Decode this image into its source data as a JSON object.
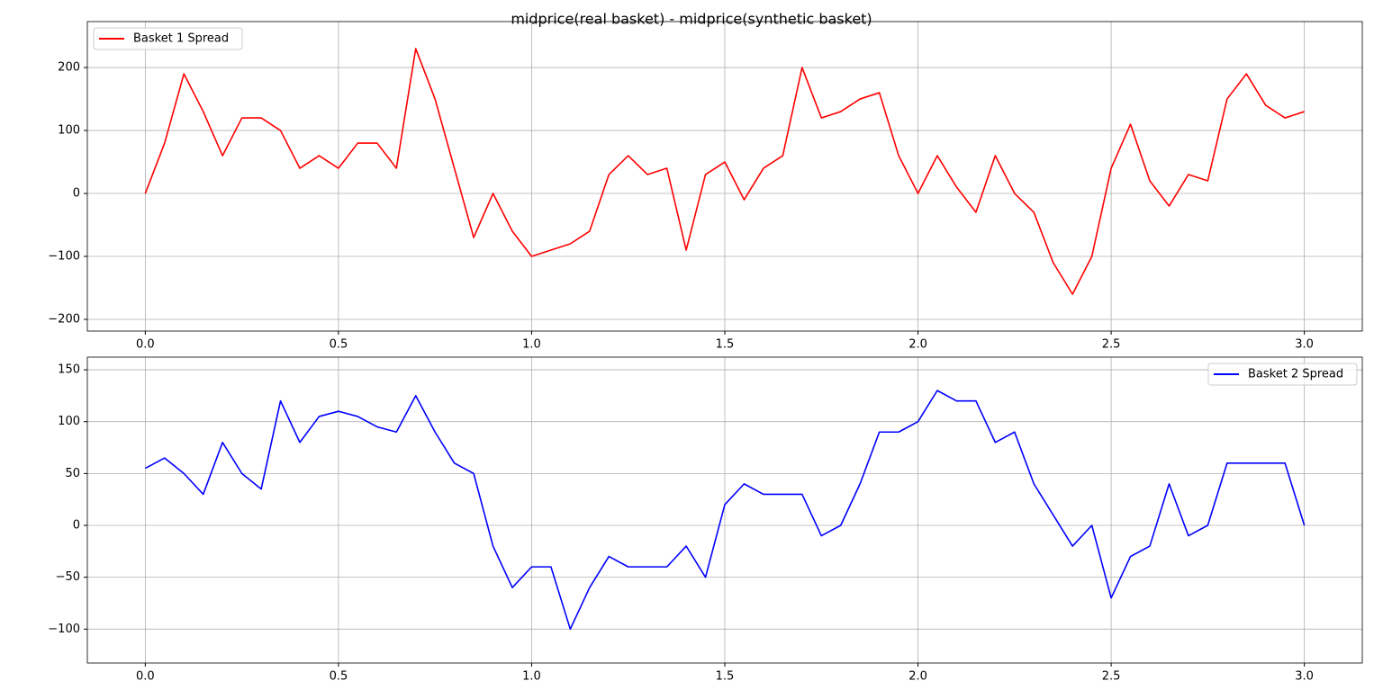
{
  "title": "midprice(real basket) - midprice(synthetic basket)",
  "chart_data": [
    {
      "type": "line",
      "x": [
        0,
        0.05,
        0.1,
        0.15,
        0.2,
        0.25,
        0.3,
        0.35,
        0.4,
        0.45,
        0.5,
        0.55,
        0.6,
        0.65,
        0.7,
        0.75,
        0.8,
        0.85,
        0.9,
        0.95,
        1,
        1.05,
        1.1,
        1.15,
        1.2,
        1.25,
        1.3,
        1.35,
        1.4,
        1.45,
        1.5,
        1.55,
        1.6,
        1.65,
        1.7,
        1.75,
        1.8,
        1.85,
        1.9,
        1.95,
        2,
        2.05,
        2.1,
        2.15,
        2.2,
        2.25,
        2.3,
        2.35,
        2.4,
        2.45,
        2.5,
        2.55,
        2.6,
        2.65,
        2.7,
        2.75,
        2.8,
        2.85,
        2.9,
        2.95,
        3
      ],
      "series": [
        {
          "name": "Basket 1 Spread",
          "color": "#ff0000",
          "values": [
            0,
            80,
            190,
            130,
            60,
            120,
            120,
            100,
            40,
            60,
            40,
            80,
            80,
            40,
            230,
            150,
            40,
            -70,
            0,
            -60,
            -100,
            -90,
            -80,
            -60,
            30,
            60,
            30,
            40,
            -90,
            30,
            50,
            -10,
            40,
            60,
            200,
            120,
            130,
            150,
            160,
            60,
            0,
            60,
            10,
            -30,
            60,
            0,
            -30,
            -110,
            -160,
            -100,
            40,
            110,
            20,
            -20,
            30,
            20,
            150,
            190,
            140,
            120,
            130
          ]
        }
      ],
      "xlim": [
        -0.15,
        3.15
      ],
      "xticks": [
        {
          "value": 0,
          "label": "0.0"
        },
        0.5,
        {
          "value": 1,
          "label": "1.0"
        },
        1.5,
        {
          "value": 2,
          "label": "2.0"
        },
        2.5,
        {
          "value": 3,
          "label": "3.0"
        }
      ],
      "ylim": [
        -218.6,
        273
      ],
      "yticks": [
        {
          "value": -200,
          "label": "−200"
        },
        {
          "value": -100,
          "label": "−100"
        },
        0,
        100,
        200
      ],
      "grid": true,
      "legend": "upper left"
    },
    {
      "type": "line",
      "x": [
        0,
        0.05,
        0.1,
        0.15,
        0.2,
        0.25,
        0.3,
        0.35,
        0.4,
        0.45,
        0.5,
        0.55,
        0.6,
        0.65,
        0.7,
        0.75,
        0.8,
        0.85,
        0.9,
        0.95,
        1,
        1.05,
        1.1,
        1.15,
        1.2,
        1.25,
        1.3,
        1.35,
        1.4,
        1.45,
        1.5,
        1.55,
        1.6,
        1.65,
        1.7,
        1.75,
        1.8,
        1.85,
        1.9,
        1.95,
        2,
        2.05,
        2.1,
        2.15,
        2.2,
        2.25,
        2.3,
        2.35,
        2.4,
        2.45,
        2.5,
        2.55,
        2.6,
        2.65,
        2.7,
        2.75,
        2.8,
        2.85,
        2.9,
        2.95,
        3
      ],
      "series": [
        {
          "name": "Basket 2 Spread",
          "color": "#0000ff",
          "values": [
            55,
            65,
            50,
            30,
            80,
            50,
            35,
            120,
            80,
            105,
            110,
            105,
            95,
            90,
            125,
            90,
            60,
            50,
            -20,
            -60,
            -40,
            -40,
            -100,
            -60,
            -30,
            -40,
            -40,
            -40,
            -20,
            -50,
            20,
            40,
            30,
            30,
            30,
            -10,
            0,
            40,
            90,
            90,
            100,
            130,
            120,
            120,
            80,
            90,
            40,
            10,
            -20,
            0,
            -70,
            -30,
            -20,
            40,
            -10,
            0,
            60,
            60,
            60,
            60,
            0
          ]
        }
      ],
      "xlim": [
        -0.15,
        3.15
      ],
      "xticks": [
        {
          "value": 0,
          "label": "0.0"
        },
        0.5,
        {
          "value": 1,
          "label": "1.0"
        },
        1.5,
        {
          "value": 2,
          "label": "2.0"
        },
        2.5,
        {
          "value": 3,
          "label": "3.0"
        }
      ],
      "ylim": [
        -132.7,
        162.2
      ],
      "yticks": [
        {
          "value": -100,
          "label": "−100"
        },
        {
          "value": -50,
          "label": "−50"
        },
        0,
        50,
        100,
        150
      ],
      "grid": true,
      "legend": "upper right"
    }
  ]
}
